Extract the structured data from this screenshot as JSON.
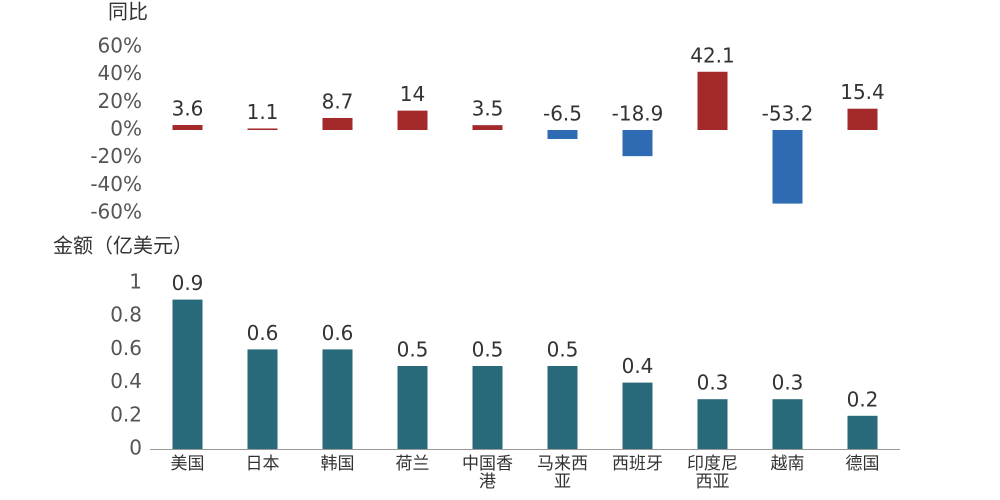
{
  "chart_data": [
    {
      "type": "bar",
      "y_label": "同比",
      "values": [
        3.6,
        1.1,
        8.7,
        14,
        3.5,
        -6.5,
        -18.9,
        42.1,
        -53.2,
        15.4
      ],
      "positive_color": "#a3292b",
      "negative_color": "#2f6bb3",
      "ylim": [
        -60,
        60
      ],
      "yticks": [
        {
          "value": -60,
          "label": "-60%"
        },
        {
          "value": -40,
          "label": "-40%"
        },
        {
          "value": -20,
          "label": "-20%"
        },
        {
          "value": 0,
          "label": "0%"
        },
        {
          "value": 20,
          "label": "20%"
        },
        {
          "value": 40,
          "label": "40%"
        },
        {
          "value": 60,
          "label": "60%"
        }
      ]
    },
    {
      "type": "bar",
      "y_label": "金额（亿美元）",
      "categories": [
        "美国",
        "日本",
        "韩国",
        "荷兰",
        "中国香港",
        "马来西亚",
        "西班牙",
        "印度尼西亚",
        "越南",
        "德国"
      ],
      "values": [
        0.9,
        0.6,
        0.6,
        0.5,
        0.5,
        0.5,
        0.4,
        0.3,
        0.3,
        0.2
      ],
      "color": "#286a7a",
      "ylim": [
        0,
        1
      ],
      "yticks": [
        0,
        0.2,
        0.4,
        0.6,
        0.8,
        1
      ]
    }
  ]
}
